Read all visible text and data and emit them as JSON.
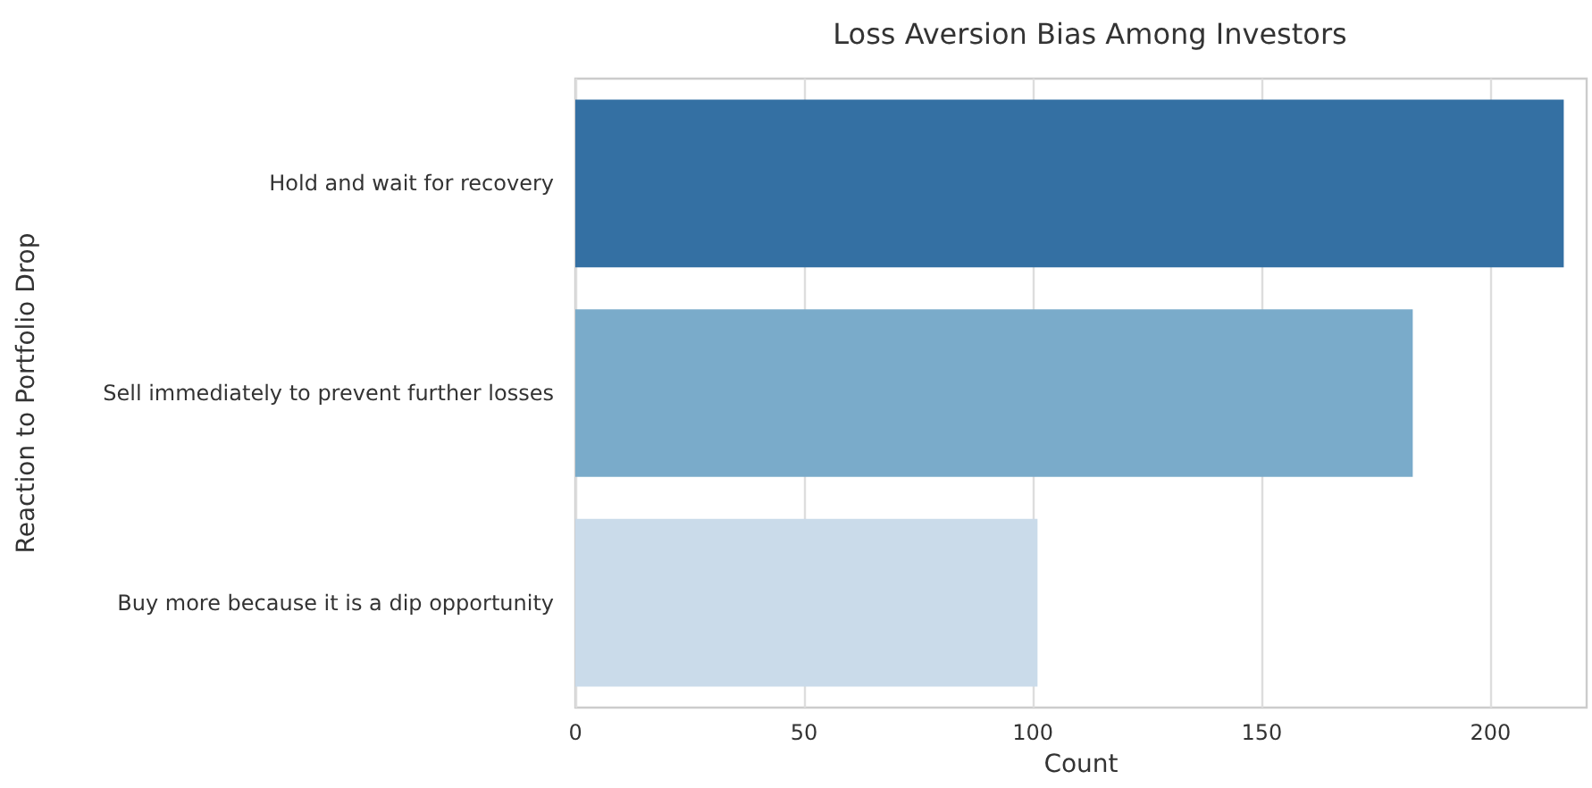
{
  "chart_data": {
    "type": "bar",
    "orientation": "horizontal",
    "title": "Loss Aversion Bias Among Investors",
    "xlabel": "Count",
    "ylabel": "Reaction to Portfolio Drop",
    "categories": [
      "Hold and wait for recovery",
      "Sell immediately to prevent further losses",
      "Buy more because it is a dip opportunity"
    ],
    "values": [
      216,
      183,
      101
    ],
    "colors": [
      "#3470a3",
      "#7aabca",
      "#cadbea"
    ],
    "xlim": [
      0,
      221
    ],
    "xticks": [
      0,
      50,
      100,
      150,
      200
    ],
    "grid": "x"
  }
}
